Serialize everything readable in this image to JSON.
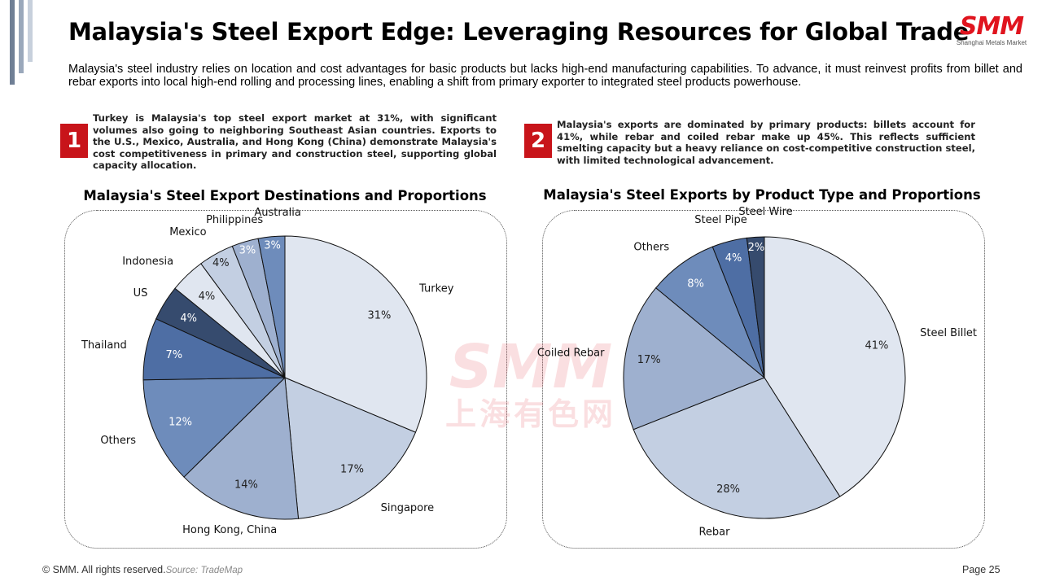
{
  "title": "Malaysia's Steel Export Edge: Leveraging Resources for Global Trade",
  "logo": {
    "main": "SMM",
    "sub": "Shanghai Metals Market"
  },
  "intro": "Malaysia's steel industry relies on location and cost advantages for basic products but lacks high-end manufacturing capabilities. To advance, it must reinvest profits from billet and rebar exports into local high-end rolling and processing lines, enabling a shift from primary exporter to integrated steel products powerhouse.",
  "points": [
    {
      "number": "1",
      "text": "Turkey is Malaysia's top steel export market at 31%, with significant volumes also going to neighboring Southeast Asian countries. Exports to the U.S., Mexico, Australia, and Hong Kong (China) demonstrate Malaysia's cost competitiveness in primary and construction steel, supporting global capacity allocation."
    },
    {
      "number": "2",
      "text": "Malaysia's exports are dominated by primary products: billets account for 41%, while rebar and coiled rebar make up 45%. This reflects sufficient smelting capacity but a heavy reliance on cost-competitive construction steel, with limited technological advancement."
    }
  ],
  "watermark": {
    "main": "SMM",
    "sub": "上海有色网"
  },
  "chart_data": [
    {
      "type": "pie",
      "title": "Malaysia's Steel Export Destinations and Proportions",
      "categories": [
        "Turkey",
        "Singapore",
        "Hong Kong, China",
        "Others",
        "Thailand",
        "US",
        "Indonesia",
        "Mexico",
        "Philippines",
        "Australia"
      ],
      "values": [
        31,
        17,
        14,
        12,
        7,
        4,
        4,
        4,
        3,
        3
      ],
      "labels": [
        "31%",
        "17%",
        "14%",
        "12%",
        "7%",
        "4%",
        "4%",
        "4%",
        "3%",
        "3%"
      ],
      "colors": [
        "#e0e6f0",
        "#c3cfe2",
        "#9eb0cf",
        "#6e8cbb",
        "#4e6ea4",
        "#364b6e",
        "#e0e6f0",
        "#c3cfe2",
        "#9eb0cf",
        "#6e8cbb"
      ]
    },
    {
      "type": "pie",
      "title": "Malaysia's Steel Exports by Product Type and Proportions",
      "categories": [
        "Steel Billet",
        "Rebar",
        "Coiled Rebar",
        "Others",
        "Steel Pipe",
        "Steel Wire"
      ],
      "values": [
        41,
        28,
        17,
        8,
        4,
        2
      ],
      "labels": [
        "41%",
        "28%",
        "17%",
        "8%",
        "4%",
        "2%"
      ],
      "colors": [
        "#e0e6f0",
        "#c3cfe2",
        "#9eb0cf",
        "#6e8cbb",
        "#4e6ea4",
        "#364b6e"
      ]
    }
  ],
  "footer": {
    "copyright": "© SMM. All rights reserved.",
    "source": "Source: TradeMap",
    "page": "Page 25"
  }
}
